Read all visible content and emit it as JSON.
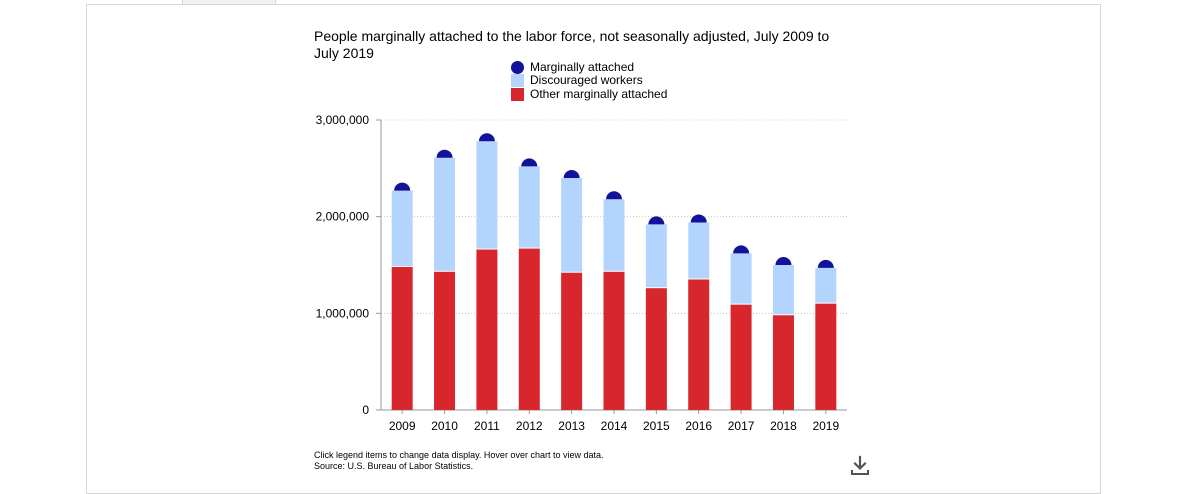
{
  "chart_data": {
    "type": "bar",
    "title": "People marginally attached to the labor force, not seasonally adjusted, July 2009 to July 2019",
    "xlabel": "",
    "ylabel": "",
    "categories": [
      "2009",
      "2010",
      "2011",
      "2012",
      "2013",
      "2014",
      "2015",
      "2016",
      "2017",
      "2018",
      "2019"
    ],
    "series": [
      {
        "name": "Other marginally attached",
        "color": "#d7262c",
        "values": [
          1480000,
          1430000,
          1660000,
          1670000,
          1420000,
          1430000,
          1260000,
          1350000,
          1090000,
          980000,
          1100000
        ]
      },
      {
        "name": "Discouraged workers",
        "color": "#b3d4fc",
        "values": [
          790000,
          1180000,
          1120000,
          850000,
          980000,
          750000,
          660000,
          590000,
          530000,
          520000,
          370000
        ]
      },
      {
        "name": "Marginally attached",
        "color": "#12129a",
        "values": [
          2270000,
          2610000,
          2780000,
          2520000,
          2400000,
          2180000,
          1920000,
          1940000,
          1620000,
          1500000,
          1470000
        ]
      }
    ],
    "ylim": [
      0,
      3000000
    ],
    "yticks": [
      0,
      1000000,
      2000000,
      3000000
    ],
    "ytick_labels": [
      "0",
      "1,000,000",
      "2,000,000",
      "3,000,000"
    ],
    "grid": true,
    "legend_position": "top"
  },
  "footer": {
    "note": "Click legend items to change data display. Hover over chart to view data.",
    "source": "Source: U.S. Bureau of Labor Statistics."
  },
  "icons": {
    "download": "download-icon"
  }
}
